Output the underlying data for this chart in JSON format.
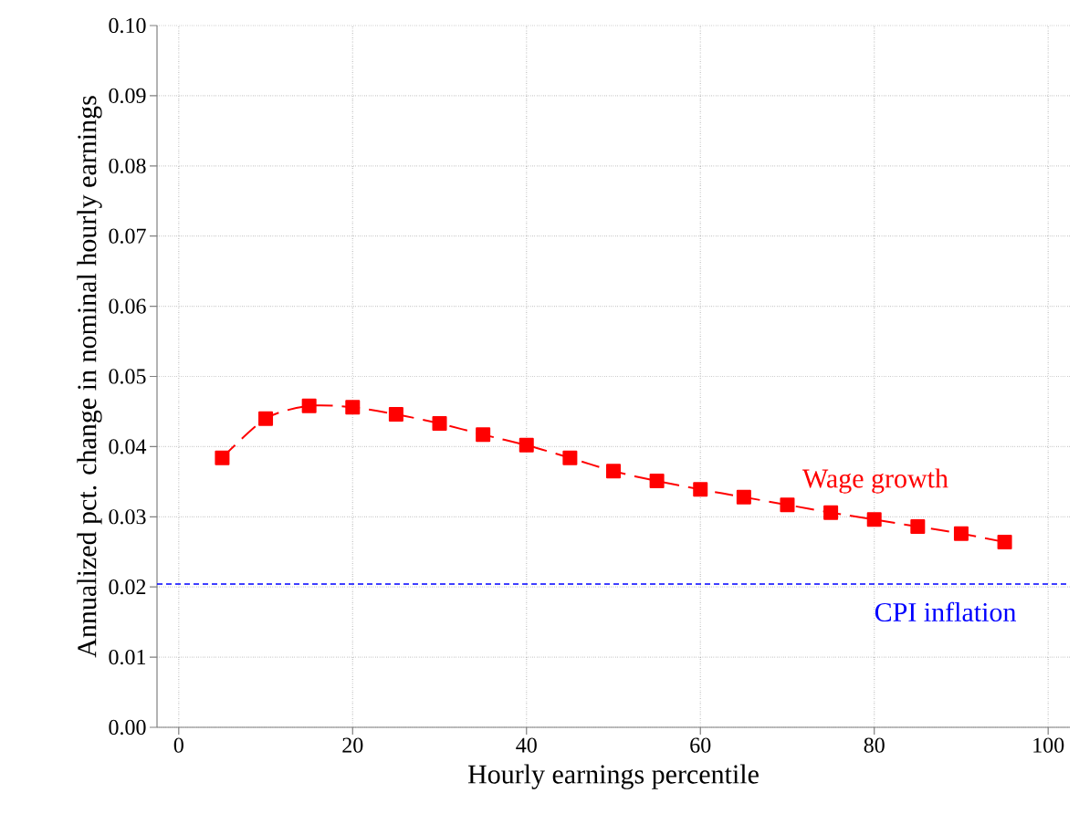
{
  "chart_data": {
    "type": "line",
    "xlabel": "Hourly earnings percentile",
    "ylabel": "Annualized pct. change in nominal hourly earnings",
    "x": [
      5,
      10,
      15,
      20,
      25,
      30,
      35,
      40,
      45,
      50,
      55,
      60,
      65,
      70,
      75,
      80,
      85,
      90,
      95
    ],
    "series": [
      {
        "color": "#ff0000",
        "values": [
          0.0384,
          0.044,
          0.0458,
          0.0456,
          0.0446,
          0.0433,
          0.0417,
          0.0402,
          0.0384,
          0.0365,
          0.0351,
          0.0339,
          0.0328,
          0.0317,
          0.0306,
          0.0296,
          0.0286,
          0.0276,
          0.0264
        ]
      }
    ],
    "marker": "square",
    "line_style": "dashed",
    "xlim": [
      -2.5,
      102.5
    ],
    "ylim": [
      0,
      0.1
    ],
    "xticks": [
      0,
      20,
      40,
      60,
      80,
      100
    ],
    "yticks": [
      {
        "value": 0,
        "label": "0.00"
      },
      {
        "value": 0.01,
        "label": "0.01"
      },
      {
        "value": 0.02,
        "label": "0.02"
      },
      {
        "value": 0.03,
        "label": "0.03"
      },
      {
        "value": 0.04,
        "label": "0.04"
      },
      {
        "value": 0.05,
        "label": "0.05"
      },
      {
        "value": 0.06,
        "label": "0.06"
      },
      {
        "value": 0.07,
        "label": "0.07"
      },
      {
        "value": 0.08,
        "label": "0.08"
      },
      {
        "value": 0.09,
        "label": "0.09"
      },
      {
        "value": 0.1,
        "label": "0.10"
      }
    ],
    "grid": true,
    "ref_lines": [
      {
        "axis": "y",
        "value": 0.0204,
        "label": "CPI inflation",
        "color": "#0000ff",
        "line_style": "dashed"
      }
    ],
    "annotations": [
      "Wage growth"
    ]
  }
}
